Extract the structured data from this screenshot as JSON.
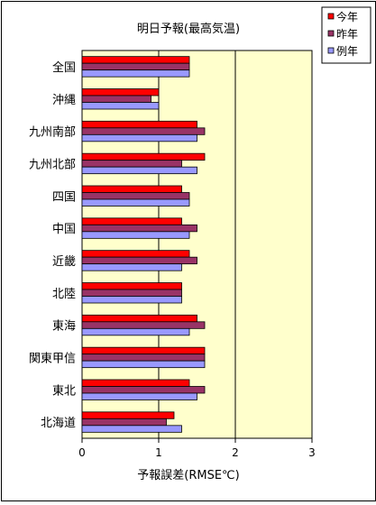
{
  "chart_data": {
    "type": "bar",
    "orientation": "horizontal",
    "title": "明日予報(最高気温)",
    "xlabel": "予報誤差(RMSE℃)",
    "ylabel": "",
    "xlim": [
      0,
      3
    ],
    "xticks": [
      "0",
      "1",
      "2",
      "3"
    ],
    "grid": "vertical-lines",
    "legend_position": "top-right",
    "categories": [
      "全国",
      "沖縄",
      "九州南部",
      "九州北部",
      "四国",
      "中国",
      "近畿",
      "北陸",
      "東海",
      "関東甲信",
      "東北",
      "北海道"
    ],
    "series": [
      {
        "name": "今年",
        "color": "#ff0000",
        "values": [
          1.4,
          1.0,
          1.5,
          1.6,
          1.3,
          1.3,
          1.4,
          1.3,
          1.5,
          1.6,
          1.4,
          1.2
        ]
      },
      {
        "name": "昨年",
        "color": "#993366",
        "values": [
          1.4,
          0.9,
          1.6,
          1.3,
          1.4,
          1.5,
          1.5,
          1.3,
          1.6,
          1.6,
          1.6,
          1.1
        ]
      },
      {
        "name": "例年",
        "color": "#9999ff",
        "values": [
          1.4,
          1.0,
          1.5,
          1.5,
          1.4,
          1.4,
          1.3,
          1.3,
          1.4,
          1.6,
          1.5,
          1.3
        ]
      }
    ],
    "plot_background": "#ffffcc"
  }
}
